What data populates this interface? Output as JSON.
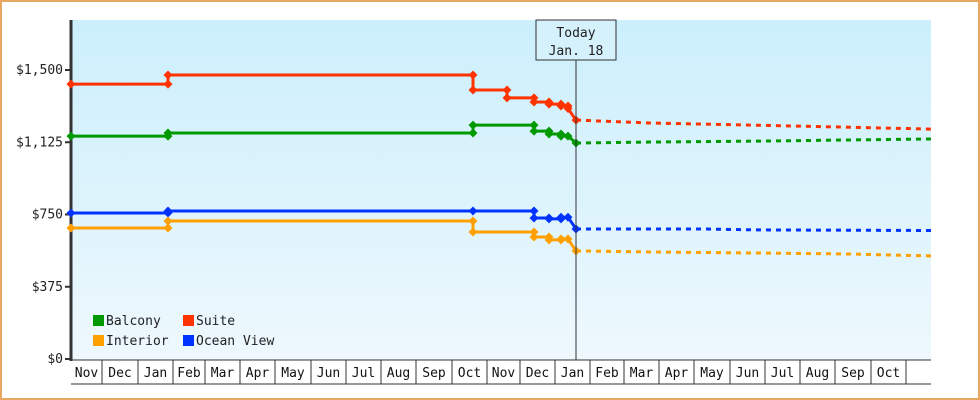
{
  "chart_data": {
    "type": "line",
    "title": "",
    "xlabel": "",
    "ylabel": "",
    "ylim": [
      0,
      1750
    ],
    "yticks": [
      {
        "value": 0,
        "label": "$0"
      },
      {
        "value": 375,
        "label": "$375"
      },
      {
        "value": 750,
        "label": "$750"
      },
      {
        "value": 1125,
        "label": "$1,125"
      },
      {
        "value": 1500,
        "label": "$1,500"
      }
    ],
    "months": [
      "Nov",
      "Dec",
      "Jan",
      "Feb",
      "Mar",
      "Apr",
      "May",
      "Jun",
      "Jul",
      "Aug",
      "Sep",
      "Oct",
      "Nov",
      "Dec",
      "Jan",
      "Feb",
      "Mar",
      "Apr",
      "May",
      "Jun",
      "Jul",
      "Aug",
      "Sep",
      "Oct"
    ],
    "today": {
      "line1": "Today",
      "line2": "Jan. 18"
    },
    "legend": [
      {
        "name": "Balcony",
        "color": "#009a00"
      },
      {
        "name": "Suite",
        "color": "#ff3300"
      },
      {
        "name": "Interior",
        "color": "#ffa000"
      },
      {
        "name": "Ocean View",
        "color": "#0033ff"
      }
    ],
    "series": [
      {
        "name": "Suite",
        "color": "#ff3300",
        "history": [
          [
            71,
            1427
          ],
          [
            168,
            1427
          ],
          [
            168,
            1474
          ],
          [
            473,
            1474
          ],
          [
            473,
            1396
          ],
          [
            507,
            1396
          ],
          [
            507,
            1355
          ],
          [
            534,
            1355
          ],
          [
            534,
            1334
          ],
          [
            549,
            1334
          ],
          [
            549,
            1323
          ],
          [
            561,
            1323
          ],
          [
            561,
            1313
          ],
          [
            568,
            1313
          ],
          [
            568,
            1300
          ],
          [
            576,
            1240
          ]
        ],
        "forecast": [
          [
            576,
            1240
          ],
          [
            650,
            1225
          ],
          [
            760,
            1213
          ],
          [
            850,
            1203
          ],
          [
            931,
            1193
          ]
        ]
      },
      {
        "name": "Balcony",
        "color": "#009a00",
        "history": [
          [
            71,
            1157
          ],
          [
            168,
            1157
          ],
          [
            168,
            1173
          ],
          [
            473,
            1173
          ],
          [
            473,
            1214
          ],
          [
            534,
            1214
          ],
          [
            534,
            1183
          ],
          [
            549,
            1183
          ],
          [
            549,
            1168
          ],
          [
            561,
            1168
          ],
          [
            561,
            1157
          ],
          [
            568,
            1157
          ],
          [
            576,
            1121
          ]
        ],
        "forecast": [
          [
            576,
            1121
          ],
          [
            650,
            1126
          ],
          [
            760,
            1131
          ],
          [
            850,
            1137
          ],
          [
            931,
            1142
          ]
        ]
      },
      {
        "name": "Ocean View",
        "color": "#0033ff",
        "history": [
          [
            71,
            758
          ],
          [
            168,
            758
          ],
          [
            168,
            768
          ],
          [
            473,
            768
          ],
          [
            534,
            768
          ],
          [
            534,
            732
          ],
          [
            549,
            732
          ],
          [
            549,
            727
          ],
          [
            561,
            727
          ],
          [
            561,
            736
          ],
          [
            568,
            736
          ],
          [
            576,
            675
          ]
        ],
        "forecast": [
          [
            576,
            675
          ],
          [
            700,
            675
          ],
          [
            760,
            670
          ],
          [
            931,
            667
          ]
        ]
      },
      {
        "name": "Interior",
        "color": "#ffa000",
        "history": [
          [
            71,
            680
          ],
          [
            168,
            680
          ],
          [
            168,
            716
          ],
          [
            473,
            716
          ],
          [
            473,
            659
          ],
          [
            534,
            659
          ],
          [
            534,
            633
          ],
          [
            549,
            633
          ],
          [
            549,
            618
          ],
          [
            561,
            618
          ],
          [
            561,
            623
          ],
          [
            568,
            623
          ],
          [
            576,
            561
          ]
        ],
        "forecast": [
          [
            576,
            561
          ],
          [
            660,
            555
          ],
          [
            760,
            550
          ],
          [
            850,
            545
          ],
          [
            931,
            535
          ]
        ]
      }
    ]
  }
}
